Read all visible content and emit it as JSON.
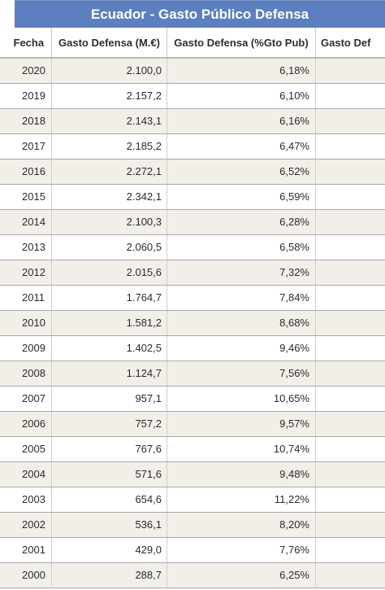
{
  "title": "Ecuador - Gasto Público Defensa",
  "columns": {
    "fecha": "Fecha",
    "gasto": "Gasto Defensa (M.€)",
    "pct": "Gasto Defensa (%Gto Pub)",
    "extra": "Gasto Def"
  },
  "rows": [
    {
      "fecha": "2020",
      "gasto": "2.100,0",
      "pct": "6,18%"
    },
    {
      "fecha": "2019",
      "gasto": "2.157,2",
      "pct": "6,10%"
    },
    {
      "fecha": "2018",
      "gasto": "2.143,1",
      "pct": "6,16%"
    },
    {
      "fecha": "2017",
      "gasto": "2.185,2",
      "pct": "6,47%"
    },
    {
      "fecha": "2016",
      "gasto": "2.272,1",
      "pct": "6,52%"
    },
    {
      "fecha": "2015",
      "gasto": "2.342,1",
      "pct": "6,59%"
    },
    {
      "fecha": "2014",
      "gasto": "2.100,3",
      "pct": "6,28%"
    },
    {
      "fecha": "2013",
      "gasto": "2.060,5",
      "pct": "6,58%"
    },
    {
      "fecha": "2012",
      "gasto": "2.015,6",
      "pct": "7,32%"
    },
    {
      "fecha": "2011",
      "gasto": "1.764,7",
      "pct": "7,84%"
    },
    {
      "fecha": "2010",
      "gasto": "1.581,2",
      "pct": "8,68%"
    },
    {
      "fecha": "2009",
      "gasto": "1.402,5",
      "pct": "9,46%"
    },
    {
      "fecha": "2008",
      "gasto": "1.124,7",
      "pct": "7,56%"
    },
    {
      "fecha": "2007",
      "gasto": "957,1",
      "pct": "10,65%"
    },
    {
      "fecha": "2006",
      "gasto": "757,2",
      "pct": "9,57%"
    },
    {
      "fecha": "2005",
      "gasto": "767,6",
      "pct": "10,74%"
    },
    {
      "fecha": "2004",
      "gasto": "571,6",
      "pct": "9,48%"
    },
    {
      "fecha": "2003",
      "gasto": "654,6",
      "pct": "11,22%"
    },
    {
      "fecha": "2002",
      "gasto": "536,1",
      "pct": "8,20%"
    },
    {
      "fecha": "2001",
      "gasto": "429,0",
      "pct": "7,76%"
    },
    {
      "fecha": "2000",
      "gasto": "288,7",
      "pct": "6,25%"
    }
  ]
}
